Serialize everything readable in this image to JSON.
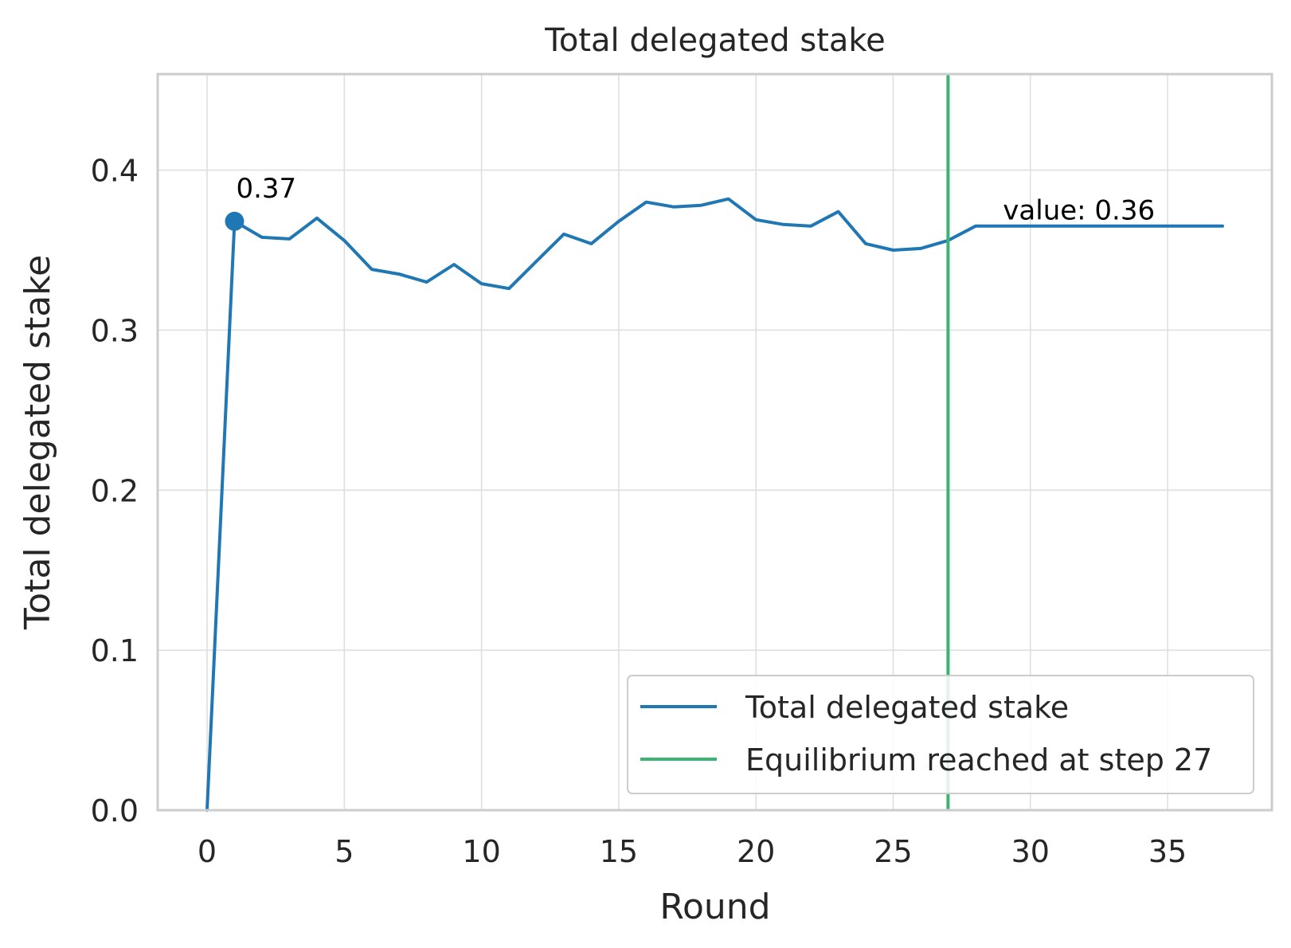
{
  "chart_data": {
    "type": "line",
    "title": "Total delegated stake",
    "xlabel": "Round",
    "ylabel": "Total delegated stake",
    "xlim": [
      -1.8,
      38.8
    ],
    "ylim": [
      0,
      0.46
    ],
    "x_ticks": [
      0,
      5,
      10,
      15,
      20,
      25,
      30,
      35
    ],
    "y_ticks": [
      0.0,
      0.1,
      0.2,
      0.3,
      0.4
    ],
    "x_tick_labels": [
      "0",
      "5",
      "10",
      "15",
      "20",
      "25",
      "30",
      "35"
    ],
    "y_tick_labels": [
      "0.0",
      "0.1",
      "0.2",
      "0.3",
      "0.4"
    ],
    "grid": true,
    "series": [
      {
        "name": "Total delegated stake",
        "color": "#1f77b4",
        "x": [
          0,
          1,
          2,
          3,
          4,
          5,
          6,
          7,
          8,
          9,
          10,
          11,
          12,
          13,
          14,
          15,
          16,
          17,
          18,
          19,
          20,
          21,
          22,
          23,
          24,
          25,
          26,
          27,
          28,
          29,
          30,
          31,
          32,
          33,
          34,
          35,
          36,
          37
        ],
        "y": [
          0.0,
          0.368,
          0.358,
          0.357,
          0.37,
          0.356,
          0.338,
          0.335,
          0.33,
          0.341,
          0.329,
          0.326,
          0.343,
          0.36,
          0.354,
          0.368,
          0.38,
          0.377,
          0.378,
          0.382,
          0.369,
          0.366,
          0.365,
          0.374,
          0.354,
          0.35,
          0.351,
          0.356,
          0.365,
          0.365,
          0.365,
          0.365,
          0.365,
          0.365,
          0.365,
          0.365,
          0.365,
          0.365
        ]
      }
    ],
    "vline": {
      "x": 27,
      "label": "Equilibrium reached at step 27",
      "color": "#3cb371"
    },
    "annotations": [
      {
        "text": "0.37",
        "x": 1,
        "y": 0.368,
        "marker": true
      },
      {
        "text": "value: 0.36",
        "x": 29,
        "y": 0.375
      }
    ],
    "legend": {
      "position": "bottom-right",
      "entries": [
        "Total delegated stake",
        "Equilibrium reached at step 27"
      ]
    }
  }
}
